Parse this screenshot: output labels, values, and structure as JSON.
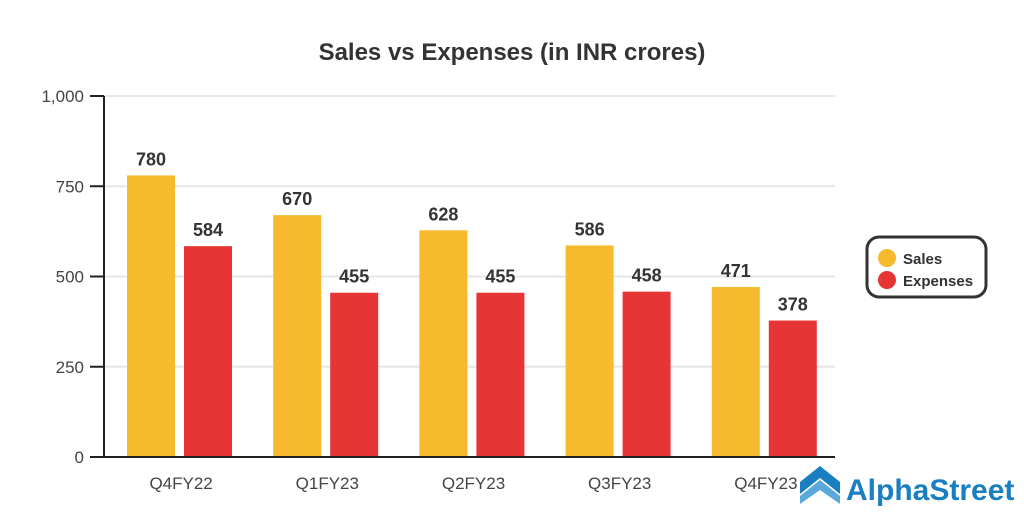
{
  "chart_data": {
    "type": "bar",
    "title": "Sales vs Expenses (in INR crores)",
    "categories": [
      "Q4FY22",
      "Q1FY23",
      "Q2FY23",
      "Q3FY23",
      "Q4FY23"
    ],
    "series": [
      {
        "name": "Sales",
        "values": [
          780,
          670,
          628,
          586,
          471
        ],
        "color": "#f7b92d"
      },
      {
        "name": "Expenses",
        "values": [
          584,
          455,
          455,
          458,
          378
        ],
        "color": "#e73434"
      }
    ],
    "ylim": [
      0,
      1000
    ],
    "yticks": [
      0,
      250,
      500,
      750,
      1000
    ],
    "ytick_labels": [
      "0",
      "250",
      "500",
      "750",
      "1,000"
    ],
    "grid": true,
    "legend_placement": "right"
  },
  "brand": {
    "name": "AlphaStreet",
    "color": "#1a7fc1"
  }
}
